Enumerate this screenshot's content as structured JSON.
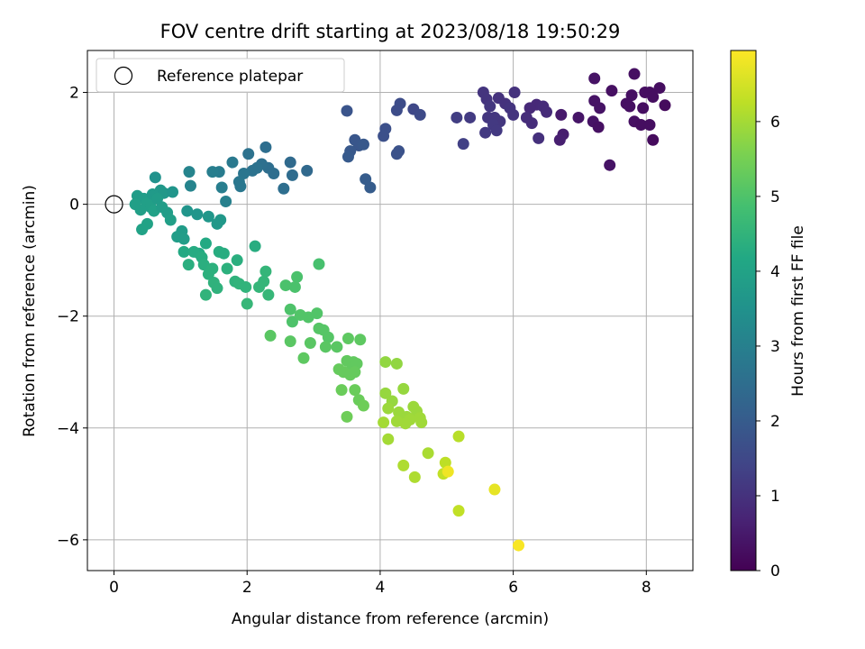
{
  "chart_data": {
    "type": "scatter",
    "title": "FOV centre drift starting at 2023/08/18 19:50:29",
    "xlabel": "Angular distance from reference (arcmin)",
    "ylabel": "Rotation from reference (arcmin)",
    "xlim": [
      -0.4,
      8.7
    ],
    "ylim": [
      -6.55,
      2.75
    ],
    "x_ticks": [
      0,
      2,
      4,
      6,
      8
    ],
    "y_ticks": [
      -6,
      -4,
      -2,
      0,
      2
    ],
    "grid": true,
    "legend": {
      "placement": "top-left",
      "entries": [
        "Reference platepar"
      ]
    },
    "reference_point": {
      "x": 0,
      "y": 0,
      "marker": "open-circle"
    },
    "colorbar": {
      "label": "Hours from first FF file",
      "colormap": "viridis",
      "range": [
        0,
        6.95
      ],
      "ticks": [
        0,
        1,
        2,
        3,
        4,
        5,
        6
      ]
    },
    "colormap_stops": [
      "#440154",
      "#482475",
      "#414487",
      "#355f8d",
      "#2a788e",
      "#21918c",
      "#22a884",
      "#44bf70",
      "#7ad151",
      "#bddf26",
      "#fde725"
    ],
    "points": [
      {
        "x": 7.82,
        "y": 2.33,
        "h": 0.3
      },
      {
        "x": 7.22,
        "y": 2.25,
        "h": 0.35
      },
      {
        "x": 8.2,
        "y": 2.08,
        "h": 0.25
      },
      {
        "x": 7.48,
        "y": 2.03,
        "h": 0.3
      },
      {
        "x": 7.98,
        "y": 2.0,
        "h": 0.28
      },
      {
        "x": 8.05,
        "y": 2.0,
        "h": 0.25
      },
      {
        "x": 7.78,
        "y": 1.95,
        "h": 0.3
      },
      {
        "x": 8.1,
        "y": 1.92,
        "h": 0.25
      },
      {
        "x": 7.22,
        "y": 1.85,
        "h": 0.35
      },
      {
        "x": 7.7,
        "y": 1.8,
        "h": 0.3
      },
      {
        "x": 7.75,
        "y": 1.75,
        "h": 0.3
      },
      {
        "x": 7.3,
        "y": 1.72,
        "h": 0.35
      },
      {
        "x": 7.95,
        "y": 1.72,
        "h": 0.25
      },
      {
        "x": 8.28,
        "y": 1.77,
        "h": 0.2
      },
      {
        "x": 6.98,
        "y": 1.55,
        "h": 0.4
      },
      {
        "x": 7.2,
        "y": 1.48,
        "h": 0.35
      },
      {
        "x": 7.82,
        "y": 1.48,
        "h": 0.3
      },
      {
        "x": 7.92,
        "y": 1.42,
        "h": 0.25
      },
      {
        "x": 8.05,
        "y": 1.42,
        "h": 0.25
      },
      {
        "x": 7.28,
        "y": 1.38,
        "h": 0.3
      },
      {
        "x": 8.1,
        "y": 1.15,
        "h": 0.2
      },
      {
        "x": 7.45,
        "y": 0.7,
        "h": 0.35
      },
      {
        "x": 6.72,
        "y": 1.6,
        "h": 0.5
      },
      {
        "x": 6.75,
        "y": 1.25,
        "h": 0.55
      },
      {
        "x": 6.7,
        "y": 1.15,
        "h": 0.6
      },
      {
        "x": 6.35,
        "y": 1.78,
        "h": 0.8
      },
      {
        "x": 6.45,
        "y": 1.75,
        "h": 0.85
      },
      {
        "x": 6.25,
        "y": 1.72,
        "h": 0.8
      },
      {
        "x": 6.5,
        "y": 1.65,
        "h": 0.85
      },
      {
        "x": 6.2,
        "y": 1.55,
        "h": 0.9
      },
      {
        "x": 6.28,
        "y": 1.45,
        "h": 0.9
      },
      {
        "x": 6.38,
        "y": 1.18,
        "h": 0.95
      },
      {
        "x": 6.02,
        "y": 2.0,
        "h": 1.0
      },
      {
        "x": 5.78,
        "y": 1.9,
        "h": 1.0
      },
      {
        "x": 5.55,
        "y": 2.0,
        "h": 1.05
      },
      {
        "x": 5.6,
        "y": 1.88,
        "h": 1.05
      },
      {
        "x": 5.65,
        "y": 1.75,
        "h": 1.1
      },
      {
        "x": 5.88,
        "y": 1.8,
        "h": 1.0
      },
      {
        "x": 5.95,
        "y": 1.72,
        "h": 1.05
      },
      {
        "x": 6.0,
        "y": 1.6,
        "h": 1.05
      },
      {
        "x": 5.72,
        "y": 1.55,
        "h": 1.1
      },
      {
        "x": 5.62,
        "y": 1.55,
        "h": 1.1
      },
      {
        "x": 5.8,
        "y": 1.48,
        "h": 1.1
      },
      {
        "x": 5.7,
        "y": 1.42,
        "h": 1.15
      },
      {
        "x": 5.75,
        "y": 1.32,
        "h": 1.15
      },
      {
        "x": 5.58,
        "y": 1.28,
        "h": 1.15
      },
      {
        "x": 5.35,
        "y": 1.55,
        "h": 1.2
      },
      {
        "x": 5.15,
        "y": 1.55,
        "h": 1.25
      },
      {
        "x": 5.25,
        "y": 1.08,
        "h": 1.3
      },
      {
        "x": 4.5,
        "y": 1.7,
        "h": 1.5
      },
      {
        "x": 4.6,
        "y": 1.6,
        "h": 1.55
      },
      {
        "x": 4.3,
        "y": 1.8,
        "h": 1.6
      },
      {
        "x": 4.25,
        "y": 1.68,
        "h": 1.6
      },
      {
        "x": 4.08,
        "y": 1.35,
        "h": 1.7
      },
      {
        "x": 4.05,
        "y": 1.22,
        "h": 1.7
      },
      {
        "x": 4.28,
        "y": 0.95,
        "h": 1.75
      },
      {
        "x": 4.25,
        "y": 0.9,
        "h": 1.75
      },
      {
        "x": 3.5,
        "y": 1.67,
        "h": 1.8
      },
      {
        "x": 3.62,
        "y": 1.15,
        "h": 1.85
      },
      {
        "x": 3.68,
        "y": 1.05,
        "h": 1.85
      },
      {
        "x": 3.75,
        "y": 1.07,
        "h": 1.9
      },
      {
        "x": 3.55,
        "y": 0.95,
        "h": 1.9
      },
      {
        "x": 3.52,
        "y": 0.85,
        "h": 1.95
      },
      {
        "x": 3.78,
        "y": 0.45,
        "h": 2.0
      },
      {
        "x": 3.85,
        "y": 0.3,
        "h": 2.0
      },
      {
        "x": 2.28,
        "y": 1.02,
        "h": 2.5
      },
      {
        "x": 2.02,
        "y": 0.9,
        "h": 2.6
      },
      {
        "x": 2.32,
        "y": 0.65,
        "h": 2.5
      },
      {
        "x": 2.22,
        "y": 0.72,
        "h": 2.55
      },
      {
        "x": 2.15,
        "y": 0.65,
        "h": 2.6
      },
      {
        "x": 2.08,
        "y": 0.6,
        "h": 2.6
      },
      {
        "x": 2.4,
        "y": 0.55,
        "h": 2.5
      },
      {
        "x": 2.65,
        "y": 0.75,
        "h": 2.4
      },
      {
        "x": 2.68,
        "y": 0.52,
        "h": 2.45
      },
      {
        "x": 2.9,
        "y": 0.6,
        "h": 2.35
      },
      {
        "x": 2.55,
        "y": 0.28,
        "h": 2.5
      },
      {
        "x": 1.95,
        "y": 0.55,
        "h": 2.7
      },
      {
        "x": 1.88,
        "y": 0.4,
        "h": 2.75
      },
      {
        "x": 1.9,
        "y": 0.32,
        "h": 2.75
      },
      {
        "x": 1.78,
        "y": 0.75,
        "h": 2.8
      },
      {
        "x": 1.58,
        "y": 0.58,
        "h": 2.9
      },
      {
        "x": 1.48,
        "y": 0.58,
        "h": 2.95
      },
      {
        "x": 1.62,
        "y": 0.3,
        "h": 2.95
      },
      {
        "x": 1.68,
        "y": 0.05,
        "h": 3.0
      },
      {
        "x": 1.13,
        "y": 0.58,
        "h": 3.1
      },
      {
        "x": 1.15,
        "y": 0.33,
        "h": 3.1
      },
      {
        "x": 0.62,
        "y": 0.48,
        "h": 3.5
      },
      {
        "x": 0.35,
        "y": 0.15,
        "h": 3.8
      },
      {
        "x": 0.45,
        "y": 0.1,
        "h": 3.85
      },
      {
        "x": 0.5,
        "y": 0.02,
        "h": 3.9
      },
      {
        "x": 0.55,
        "y": -0.05,
        "h": 3.9
      },
      {
        "x": 0.6,
        "y": -0.12,
        "h": 3.95
      },
      {
        "x": 0.4,
        "y": -0.1,
        "h": 3.9
      },
      {
        "x": 0.7,
        "y": 0.25,
        "h": 3.7
      },
      {
        "x": 0.75,
        "y": 0.2,
        "h": 3.7
      },
      {
        "x": 0.88,
        "y": 0.22,
        "h": 3.6
      },
      {
        "x": 0.72,
        "y": -0.05,
        "h": 3.85
      },
      {
        "x": 0.8,
        "y": -0.15,
        "h": 3.85
      },
      {
        "x": 0.85,
        "y": -0.28,
        "h": 3.9
      },
      {
        "x": 0.5,
        "y": -0.35,
        "h": 4.0
      },
      {
        "x": 0.42,
        "y": -0.45,
        "h": 4.0
      },
      {
        "x": 0.32,
        "y": 0.0,
        "h": 3.9
      },
      {
        "x": 0.58,
        "y": 0.18,
        "h": 3.75
      },
      {
        "x": 0.65,
        "y": 0.1,
        "h": 3.8
      },
      {
        "x": 1.1,
        "y": -0.12,
        "h": 3.6
      },
      {
        "x": 1.25,
        "y": -0.18,
        "h": 3.6
      },
      {
        "x": 1.42,
        "y": -0.22,
        "h": 3.65
      },
      {
        "x": 1.6,
        "y": -0.28,
        "h": 3.7
      },
      {
        "x": 1.55,
        "y": -0.35,
        "h": 3.7
      },
      {
        "x": 1.02,
        "y": -0.48,
        "h": 3.8
      },
      {
        "x": 0.95,
        "y": -0.58,
        "h": 3.85
      },
      {
        "x": 1.05,
        "y": -0.62,
        "h": 3.85
      },
      {
        "x": 2.12,
        "y": -0.75,
        "h": 4.3
      },
      {
        "x": 1.38,
        "y": -0.7,
        "h": 4.2
      },
      {
        "x": 1.28,
        "y": -0.88,
        "h": 4.2
      },
      {
        "x": 1.05,
        "y": -0.85,
        "h": 4.2
      },
      {
        "x": 1.2,
        "y": -0.85,
        "h": 4.25
      },
      {
        "x": 1.58,
        "y": -0.85,
        "h": 4.3
      },
      {
        "x": 1.65,
        "y": -0.88,
        "h": 4.3
      },
      {
        "x": 1.32,
        "y": -0.95,
        "h": 4.3
      },
      {
        "x": 1.85,
        "y": -1.0,
        "h": 4.35
      },
      {
        "x": 1.12,
        "y": -1.08,
        "h": 4.35
      },
      {
        "x": 1.35,
        "y": -1.08,
        "h": 4.35
      },
      {
        "x": 1.48,
        "y": -1.15,
        "h": 4.4
      },
      {
        "x": 1.7,
        "y": -1.15,
        "h": 4.4
      },
      {
        "x": 1.42,
        "y": -1.25,
        "h": 4.4
      },
      {
        "x": 1.5,
        "y": -1.4,
        "h": 4.45
      },
      {
        "x": 1.55,
        "y": -1.5,
        "h": 4.45
      },
      {
        "x": 1.82,
        "y": -1.38,
        "h": 4.45
      },
      {
        "x": 1.88,
        "y": -1.42,
        "h": 4.5
      },
      {
        "x": 1.98,
        "y": -1.48,
        "h": 4.5
      },
      {
        "x": 1.38,
        "y": -1.62,
        "h": 4.5
      },
      {
        "x": 2.28,
        "y": -1.2,
        "h": 4.55
      },
      {
        "x": 2.25,
        "y": -1.38,
        "h": 4.55
      },
      {
        "x": 2.18,
        "y": -1.48,
        "h": 4.55
      },
      {
        "x": 2.0,
        "y": -1.78,
        "h": 4.6
      },
      {
        "x": 2.32,
        "y": -1.62,
        "h": 4.6
      },
      {
        "x": 3.08,
        "y": -1.07,
        "h": 4.9
      },
      {
        "x": 2.75,
        "y": -1.3,
        "h": 4.95
      },
      {
        "x": 2.58,
        "y": -1.45,
        "h": 4.95
      },
      {
        "x": 2.72,
        "y": -1.48,
        "h": 4.95
      },
      {
        "x": 2.65,
        "y": -1.88,
        "h": 5.0
      },
      {
        "x": 2.68,
        "y": -2.1,
        "h": 5.0
      },
      {
        "x": 2.8,
        "y": -1.98,
        "h": 5.05
      },
      {
        "x": 2.92,
        "y": -2.02,
        "h": 5.05
      },
      {
        "x": 3.05,
        "y": -1.95,
        "h": 5.05
      },
      {
        "x": 3.08,
        "y": -2.22,
        "h": 5.1
      },
      {
        "x": 3.15,
        "y": -2.25,
        "h": 5.1
      },
      {
        "x": 3.22,
        "y": -2.38,
        "h": 5.1
      },
      {
        "x": 3.18,
        "y": -2.55,
        "h": 5.15
      },
      {
        "x": 3.35,
        "y": -2.55,
        "h": 5.15
      },
      {
        "x": 2.95,
        "y": -2.48,
        "h": 5.15
      },
      {
        "x": 2.65,
        "y": -2.45,
        "h": 5.15
      },
      {
        "x": 2.35,
        "y": -2.35,
        "h": 5.15
      },
      {
        "x": 2.85,
        "y": -2.75,
        "h": 5.2
      },
      {
        "x": 3.52,
        "y": -2.4,
        "h": 5.2
      },
      {
        "x": 3.7,
        "y": -2.42,
        "h": 5.2
      },
      {
        "x": 3.5,
        "y": -2.8,
        "h": 5.25
      },
      {
        "x": 3.6,
        "y": -2.82,
        "h": 5.25
      },
      {
        "x": 3.58,
        "y": -2.92,
        "h": 5.25
      },
      {
        "x": 3.65,
        "y": -2.85,
        "h": 5.25
      },
      {
        "x": 3.38,
        "y": -2.95,
        "h": 5.3
      },
      {
        "x": 3.45,
        "y": -3.0,
        "h": 5.3
      },
      {
        "x": 3.55,
        "y": -3.05,
        "h": 5.3
      },
      {
        "x": 3.62,
        "y": -3.0,
        "h": 5.3
      },
      {
        "x": 3.42,
        "y": -3.32,
        "h": 5.35
      },
      {
        "x": 3.62,
        "y": -3.32,
        "h": 5.35
      },
      {
        "x": 3.68,
        "y": -3.5,
        "h": 5.35
      },
      {
        "x": 3.75,
        "y": -3.6,
        "h": 5.4
      },
      {
        "x": 3.5,
        "y": -3.8,
        "h": 5.4
      },
      {
        "x": 4.08,
        "y": -2.82,
        "h": 5.8
      },
      {
        "x": 4.25,
        "y": -2.85,
        "h": 5.8
      },
      {
        "x": 4.35,
        "y": -3.3,
        "h": 5.85
      },
      {
        "x": 4.08,
        "y": -3.38,
        "h": 5.85
      },
      {
        "x": 4.18,
        "y": -3.52,
        "h": 5.85
      },
      {
        "x": 4.12,
        "y": -3.65,
        "h": 5.9
      },
      {
        "x": 4.28,
        "y": -3.72,
        "h": 5.9
      },
      {
        "x": 4.4,
        "y": -3.8,
        "h": 5.9
      },
      {
        "x": 4.5,
        "y": -3.62,
        "h": 5.9
      },
      {
        "x": 4.55,
        "y": -3.7,
        "h": 5.9
      },
      {
        "x": 4.45,
        "y": -3.85,
        "h": 5.95
      },
      {
        "x": 4.6,
        "y": -3.82,
        "h": 5.95
      },
      {
        "x": 4.62,
        "y": -3.9,
        "h": 5.95
      },
      {
        "x": 4.38,
        "y": -3.92,
        "h": 5.95
      },
      {
        "x": 4.25,
        "y": -3.88,
        "h": 5.95
      },
      {
        "x": 4.05,
        "y": -3.9,
        "h": 6.0
      },
      {
        "x": 4.12,
        "y": -4.2,
        "h": 6.0
      },
      {
        "x": 4.72,
        "y": -4.45,
        "h": 6.05
      },
      {
        "x": 4.35,
        "y": -4.67,
        "h": 6.1
      },
      {
        "x": 4.52,
        "y": -4.88,
        "h": 6.1
      },
      {
        "x": 5.18,
        "y": -4.15,
        "h": 6.2
      },
      {
        "x": 4.98,
        "y": -4.62,
        "h": 6.25
      },
      {
        "x": 4.95,
        "y": -4.82,
        "h": 6.3
      },
      {
        "x": 5.02,
        "y": -4.78,
        "h": 6.8
      },
      {
        "x": 5.18,
        "y": -5.48,
        "h": 6.3
      },
      {
        "x": 5.72,
        "y": -5.1,
        "h": 6.7
      },
      {
        "x": 6.08,
        "y": -6.1,
        "h": 6.9
      }
    ]
  }
}
